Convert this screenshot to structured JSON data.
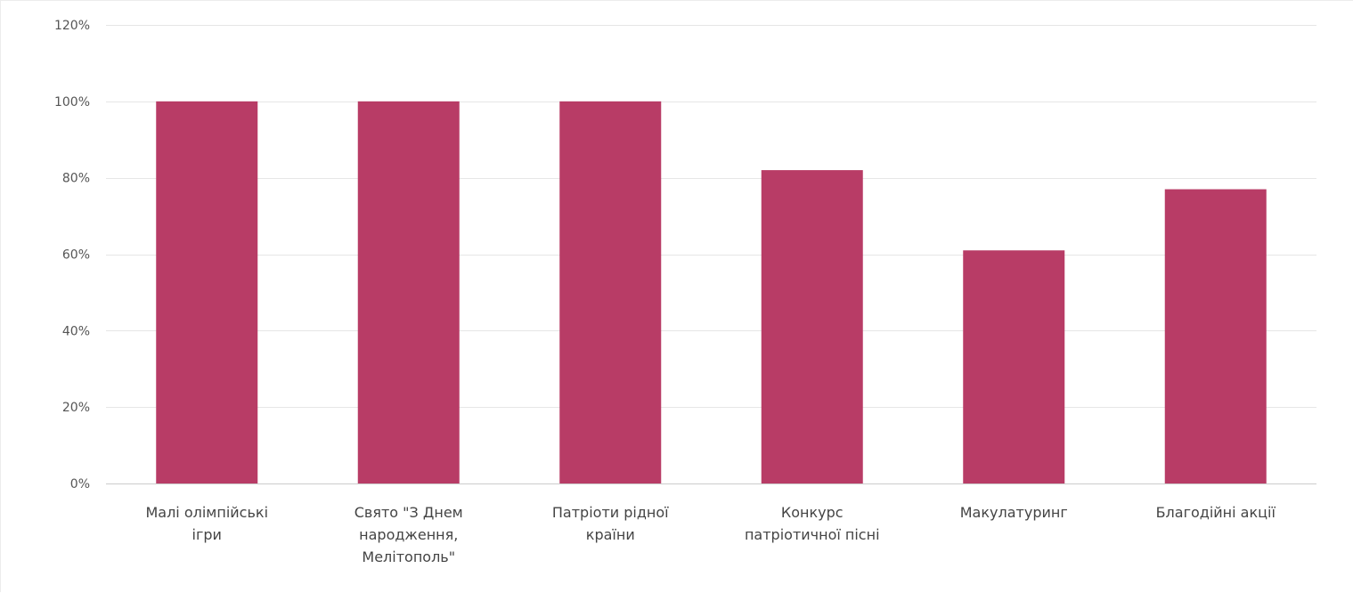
{
  "chart_data": {
    "type": "bar",
    "title": "",
    "xlabel": "",
    "ylabel": "",
    "categories": [
      [
        "Малі олімпійські",
        "ігри"
      ],
      [
        "Свято \"З Днем",
        "народження,",
        "Мелітополь\""
      ],
      [
        "Патріоти рідної",
        "країни"
      ],
      [
        "Конкурс",
        "патріотичної пісні"
      ],
      [
        "Макулатуринг"
      ],
      [
        "Благодійні акції"
      ]
    ],
    "values": [
      100,
      100,
      100,
      82,
      61,
      77
    ],
    "ylim": [
      0,
      120
    ],
    "yticks": [
      0,
      20,
      40,
      60,
      80,
      100,
      120
    ],
    "ytick_suffix": "%",
    "ytick_labels": [
      "0%",
      "20%",
      "40%",
      "60%",
      "80%",
      "100%",
      "120%"
    ],
    "grid": true,
    "legend": "none",
    "colors": {
      "bar": "#b83c66",
      "grid": "#e6e6e6",
      "axis": "#cccccc"
    }
  }
}
